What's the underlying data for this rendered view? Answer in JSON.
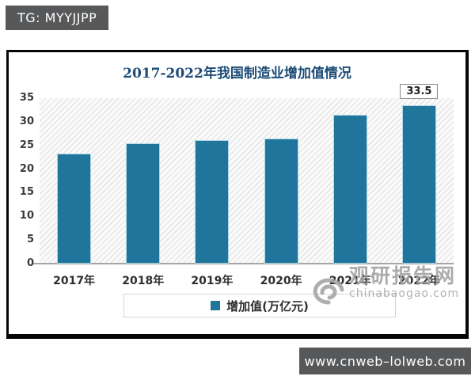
{
  "page": {
    "tag_badge": "TG: MYYJJPP",
    "footer_badge": "www.cnweb–lolweb.com"
  },
  "watermark": {
    "name": "观研报告网",
    "domain": "chinabaogao.com"
  },
  "chart_data": {
    "type": "bar",
    "title": "2017-2022年我国制造业增加值情况",
    "categories": [
      "2017年",
      "2018年",
      "2019年",
      "2020年",
      "2021年",
      "2022年"
    ],
    "series": [
      {
        "name": "增加值(万亿元)",
        "values": [
          23.3,
          25.5,
          26.2,
          26.5,
          31.4,
          33.5
        ]
      }
    ],
    "data_labels": [
      {
        "category_index": 5,
        "text": "33.5"
      }
    ],
    "y_ticks": [
      0,
      5,
      10,
      15,
      20,
      25,
      30,
      35
    ],
    "ylim": [
      0,
      35
    ],
    "xlabel": "",
    "ylabel": "",
    "grid": false,
    "plot_background": "diagonal-hatch",
    "legend": {
      "position": "bottom-center",
      "entries": [
        "增加值(万亿元)"
      ]
    },
    "colors": {
      "bar": "#20759c",
      "bar_edge": "#aed6e6",
      "title": "#1c4c77",
      "axis_text": "#3a3a3a",
      "baseline": "#a6a6a6"
    }
  }
}
